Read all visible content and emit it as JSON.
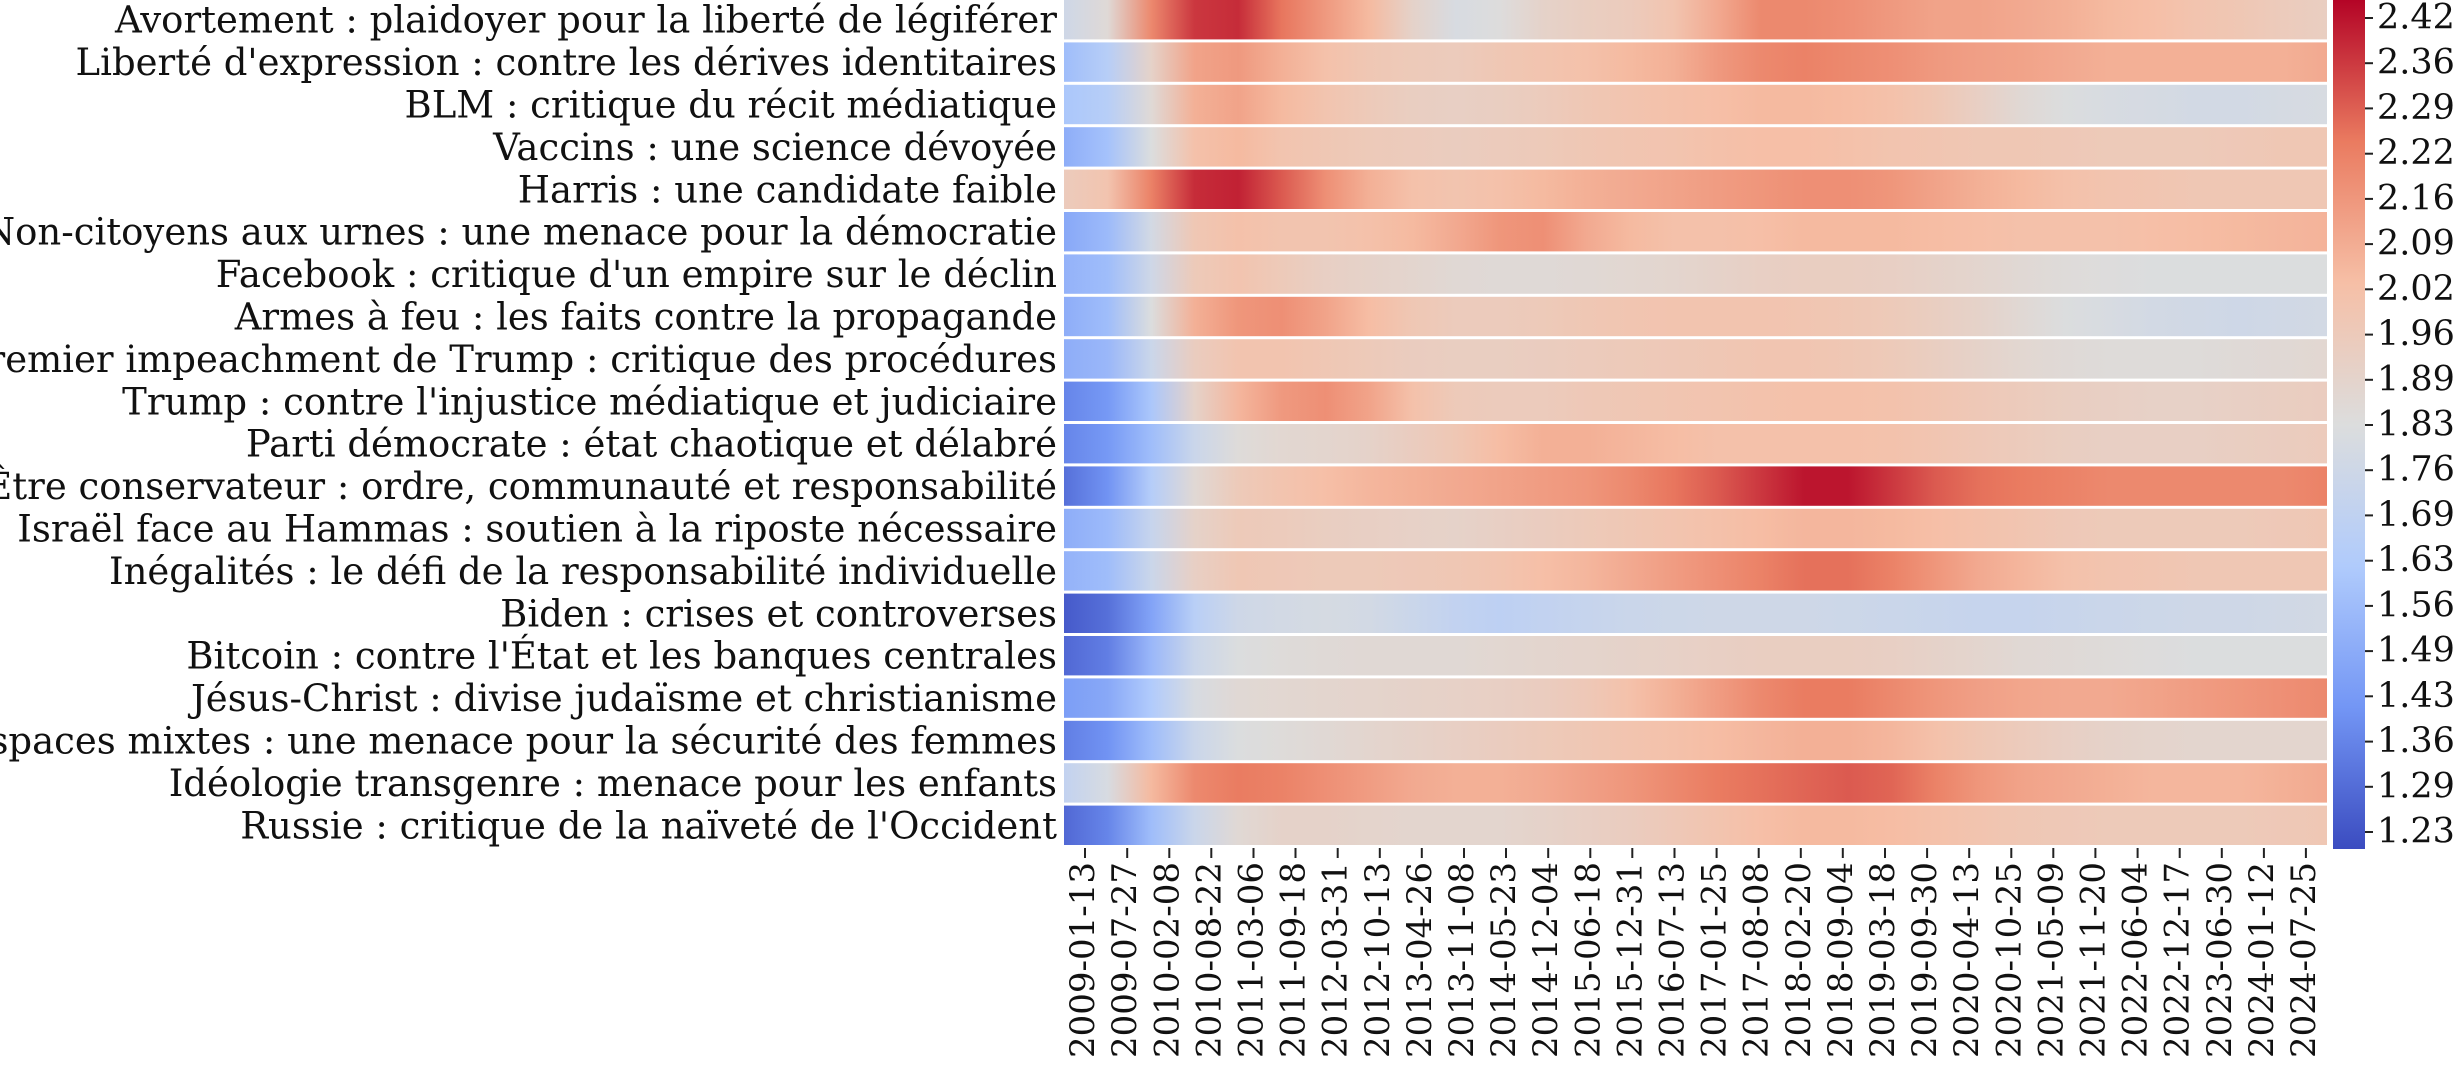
{
  "chart_data": {
    "type": "heatmap",
    "title": "",
    "xlabel": "",
    "ylabel": "",
    "colormap": "coolwarm",
    "colormap_stops": [
      "#3b4cc0",
      "#7396f5",
      "#b0cbfc",
      "#dcdddd",
      "#f6bfa6",
      "#ea7b60",
      "#b40426"
    ],
    "grid_lines": "white row separators",
    "colorbar_position": "right",
    "value_range": [
      1.2,
      2.45
    ],
    "colorbar_ticks": [
      "2.42",
      "2.36",
      "2.29",
      "2.22",
      "2.16",
      "2.09",
      "2.02",
      "1.96",
      "1.89",
      "1.83",
      "1.76",
      "1.69",
      "1.63",
      "1.56",
      "1.49",
      "1.43",
      "1.36",
      "1.29",
      "1.23"
    ],
    "x_tick_labels": [
      "2009-01-13",
      "2009-07-27",
      "2010-02-08",
      "2010-08-22",
      "2011-03-06",
      "2011-09-18",
      "2012-03-31",
      "2012-10-13",
      "2013-04-26",
      "2013-11-08",
      "2014-05-23",
      "2014-12-04",
      "2015-06-18",
      "2015-12-31",
      "2016-07-13",
      "2017-01-25",
      "2017-08-08",
      "2018-02-20",
      "2018-09-04",
      "2019-03-18",
      "2019-09-30",
      "2020-04-13",
      "2020-10-25",
      "2021-05-09",
      "2021-11-20",
      "2022-06-04",
      "2022-12-17",
      "2023-06-30",
      "2024-01-12",
      "2024-07-25"
    ],
    "rows": [
      {
        "label": "Avortement : plaidoyer pour la liberté de légiférer",
        "values": [
          1.76,
          1.85,
          2.2,
          2.36,
          2.38,
          2.25,
          2.15,
          2.05,
          1.9,
          1.8,
          1.83,
          1.9,
          1.93,
          1.95,
          2.0,
          2.1,
          2.2,
          2.2,
          2.18,
          2.15,
          2.12,
          2.12,
          2.1,
          2.08,
          2.05,
          2.03,
          2.0,
          1.98,
          1.95,
          1.93
        ]
      },
      {
        "label": "Liberté d'expression : contre les dérives identitaires",
        "values": [
          1.56,
          1.65,
          1.9,
          2.12,
          2.15,
          2.08,
          2.02,
          1.98,
          1.96,
          1.95,
          1.98,
          2.0,
          2.02,
          2.05,
          2.08,
          2.15,
          2.2,
          2.22,
          2.2,
          2.18,
          2.15,
          2.13,
          2.12,
          2.1,
          2.08,
          2.08,
          2.08,
          2.08,
          2.08,
          2.1
        ]
      },
      {
        "label": "BLM : critique du récit médiatique",
        "values": [
          1.6,
          1.65,
          1.85,
          2.08,
          2.12,
          2.05,
          2.0,
          1.96,
          1.93,
          1.92,
          1.93,
          1.95,
          1.98,
          2.0,
          2.02,
          2.03,
          2.05,
          2.05,
          2.04,
          2.02,
          1.98,
          1.92,
          1.86,
          1.82,
          1.8,
          1.79,
          1.78,
          1.78,
          1.79,
          1.8
        ]
      },
      {
        "label": "Vaccins : une science dévoyée",
        "values": [
          1.5,
          1.58,
          1.82,
          2.02,
          2.05,
          2.0,
          1.98,
          1.96,
          1.95,
          1.94,
          1.95,
          1.96,
          1.98,
          1.99,
          2.0,
          2.02,
          2.03,
          2.03,
          2.02,
          2.0,
          1.99,
          1.98,
          1.98,
          1.97,
          1.96,
          1.96,
          1.96,
          1.97,
          1.98,
          1.98
        ]
      },
      {
        "label": "Harris : une candidate faible",
        "values": [
          1.95,
          2.0,
          2.22,
          2.38,
          2.4,
          2.3,
          2.18,
          2.08,
          2.02,
          2.0,
          2.02,
          2.05,
          2.08,
          2.1,
          2.12,
          2.14,
          2.16,
          2.18,
          2.18,
          2.16,
          2.12,
          2.08,
          2.05,
          2.02,
          2.0,
          1.99,
          1.98,
          1.98,
          1.98,
          1.98
        ]
      },
      {
        "label": "Non-citoyens aux urnes : une menace pour la démocratie",
        "values": [
          1.48,
          1.55,
          1.78,
          1.98,
          2.02,
          2.0,
          2.0,
          2.02,
          2.05,
          2.1,
          2.16,
          2.18,
          2.1,
          2.05,
          2.02,
          2.02,
          2.03,
          2.05,
          2.05,
          2.05,
          2.04,
          2.03,
          2.02,
          2.02,
          2.02,
          2.03,
          2.04,
          2.05,
          2.06,
          2.07
        ]
      },
      {
        "label": "Facebook : critique d'un empire sur le déclin",
        "values": [
          1.52,
          1.56,
          1.76,
          1.96,
          2.0,
          1.96,
          1.92,
          1.9,
          1.88,
          1.86,
          1.85,
          1.85,
          1.86,
          1.87,
          1.88,
          1.9,
          1.92,
          1.93,
          1.93,
          1.92,
          1.9,
          1.88,
          1.86,
          1.84,
          1.83,
          1.82,
          1.82,
          1.82,
          1.82,
          1.82
        ]
      },
      {
        "label": "Armes à feu : les faits contre la propagande",
        "values": [
          1.5,
          1.56,
          1.82,
          2.08,
          2.16,
          2.18,
          2.12,
          2.04,
          1.98,
          1.95,
          1.95,
          1.96,
          1.98,
          1.99,
          2.0,
          2.0,
          2.0,
          1.99,
          1.98,
          1.96,
          1.93,
          1.9,
          1.86,
          1.82,
          1.8,
          1.78,
          1.77,
          1.76,
          1.77,
          1.78
        ]
      },
      {
        "label": "Premier impeachment de Trump : critique des procédures",
        "values": [
          1.5,
          1.54,
          1.74,
          1.94,
          2.0,
          2.0,
          1.98,
          1.96,
          1.94,
          1.93,
          1.93,
          1.94,
          1.95,
          1.96,
          1.97,
          1.98,
          1.99,
          1.99,
          1.98,
          1.96,
          1.93,
          1.9,
          1.87,
          1.85,
          1.84,
          1.84,
          1.84,
          1.85,
          1.86,
          1.87
        ]
      },
      {
        "label": "Trump : contre l'injustice médiatique et judiciaire",
        "values": [
          1.36,
          1.42,
          1.6,
          1.9,
          2.06,
          2.15,
          2.18,
          2.12,
          2.02,
          1.96,
          1.95,
          1.95,
          1.97,
          1.98,
          1.99,
          2.0,
          2.01,
          2.02,
          2.02,
          2.01,
          1.99,
          1.97,
          1.95,
          1.93,
          1.92,
          1.91,
          1.91,
          1.92,
          1.93,
          1.94
        ]
      },
      {
        "label": "Parti démocrate : état chaotique et délabré",
        "values": [
          1.36,
          1.42,
          1.56,
          1.74,
          1.84,
          1.87,
          1.88,
          1.9,
          1.94,
          1.98,
          2.04,
          2.08,
          2.08,
          2.06,
          2.04,
          2.02,
          2.02,
          2.02,
          2.02,
          2.01,
          1.99,
          1.97,
          1.95,
          1.93,
          1.92,
          1.92,
          1.92,
          1.93,
          1.94,
          1.95
        ]
      },
      {
        "label": "Être conservateur : ordre, communauté et responsabilité",
        "values": [
          1.3,
          1.4,
          1.64,
          1.86,
          1.96,
          2.0,
          2.03,
          2.06,
          2.08,
          2.1,
          2.12,
          2.14,
          2.16,
          2.2,
          2.25,
          2.3,
          2.36,
          2.42,
          2.42,
          2.36,
          2.3,
          2.26,
          2.24,
          2.22,
          2.2,
          2.2,
          2.2,
          2.2,
          2.2,
          2.22
        ]
      },
      {
        "label": "Israël face au Hammas : soutien à la riposte nécessaire",
        "values": [
          1.5,
          1.55,
          1.72,
          1.9,
          1.96,
          1.95,
          1.93,
          1.92,
          1.91,
          1.9,
          1.92,
          1.94,
          1.96,
          1.98,
          2.0,
          2.02,
          2.04,
          2.06,
          2.06,
          2.05,
          2.03,
          2.01,
          1.99,
          1.97,
          1.96,
          1.96,
          1.96,
          1.96,
          1.97,
          1.98
        ]
      },
      {
        "label": "Inégalités : le défi de la responsabilité individuelle",
        "values": [
          1.52,
          1.56,
          1.74,
          1.92,
          1.98,
          1.97,
          1.96,
          1.96,
          1.97,
          1.98,
          2.0,
          2.03,
          2.06,
          2.1,
          2.14,
          2.18,
          2.22,
          2.26,
          2.26,
          2.22,
          2.16,
          2.1,
          2.06,
          2.02,
          2.0,
          1.99,
          1.98,
          1.98,
          1.98,
          1.98
        ]
      },
      {
        "label": "Biden : crises et controverses",
        "values": [
          1.24,
          1.3,
          1.46,
          1.66,
          1.76,
          1.78,
          1.79,
          1.78,
          1.74,
          1.7,
          1.68,
          1.7,
          1.72,
          1.74,
          1.75,
          1.76,
          1.76,
          1.76,
          1.75,
          1.74,
          1.73,
          1.72,
          1.72,
          1.73,
          1.74,
          1.75,
          1.76,
          1.76,
          1.77,
          1.78
        ]
      },
      {
        "label": "Bitcoin : contre l'État et les banques centrales",
        "values": [
          1.28,
          1.34,
          1.54,
          1.74,
          1.82,
          1.84,
          1.85,
          1.86,
          1.86,
          1.86,
          1.87,
          1.88,
          1.89,
          1.9,
          1.91,
          1.92,
          1.93,
          1.93,
          1.93,
          1.92,
          1.9,
          1.88,
          1.86,
          1.85,
          1.84,
          1.83,
          1.82,
          1.82,
          1.82,
          1.82
        ]
      },
      {
        "label": "Jésus-Christ : divise judaïsme et christianisme",
        "values": [
          1.44,
          1.48,
          1.62,
          1.8,
          1.86,
          1.87,
          1.88,
          1.89,
          1.9,
          1.91,
          1.92,
          1.94,
          1.97,
          2.02,
          2.08,
          2.14,
          2.2,
          2.24,
          2.24,
          2.2,
          2.16,
          2.13,
          2.11,
          2.1,
          2.1,
          2.12,
          2.14,
          2.16,
          2.18,
          2.2
        ]
      },
      {
        "label": "Espaces mixtes : une menace pour la sécurité des femmes",
        "values": [
          1.34,
          1.4,
          1.56,
          1.74,
          1.82,
          1.84,
          1.86,
          1.88,
          1.9,
          1.92,
          1.94,
          1.96,
          1.98,
          2.0,
          2.02,
          2.04,
          2.06,
          2.08,
          2.08,
          2.06,
          2.02,
          1.98,
          1.95,
          1.92,
          1.9,
          1.89,
          1.88,
          1.88,
          1.88,
          1.88
        ]
      },
      {
        "label": "Idéologie transgenre : menace pour les enfants",
        "values": [
          1.7,
          1.8,
          2.05,
          2.2,
          2.24,
          2.22,
          2.18,
          2.14,
          2.1,
          2.08,
          2.08,
          2.1,
          2.13,
          2.16,
          2.2,
          2.24,
          2.26,
          2.28,
          2.3,
          2.28,
          2.22,
          2.16,
          2.12,
          2.1,
          2.08,
          2.06,
          2.06,
          2.06,
          2.08,
          2.1
        ]
      },
      {
        "label": "Russie : critique de la naïveté de l'Occident",
        "values": [
          1.28,
          1.36,
          1.56,
          1.74,
          1.86,
          1.9,
          1.9,
          1.89,
          1.88,
          1.88,
          1.88,
          1.9,
          1.92,
          1.94,
          1.97,
          2.0,
          2.03,
          2.05,
          2.05,
          2.04,
          2.02,
          2.0,
          1.98,
          1.97,
          1.96,
          1.96,
          1.96,
          1.96,
          1.97,
          1.98
        ]
      }
    ]
  }
}
